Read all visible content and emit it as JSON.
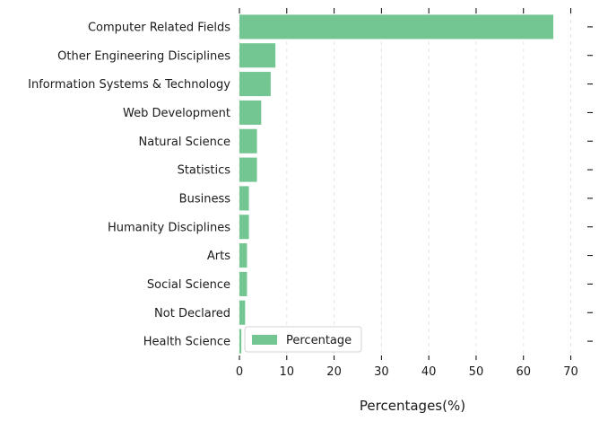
{
  "chart_data": {
    "type": "bar",
    "orientation": "horizontal",
    "categories": [
      "Computer Related Fields",
      "Other Engineering Disciplines",
      "Information Systems & Technology",
      "Web Development",
      "Natural Science",
      "Statistics",
      "Business",
      "Humanity Disciplines",
      "Arts",
      "Social Science",
      "Not Declared",
      "Health Science"
    ],
    "series": [
      {
        "name": "Percentage",
        "values": [
          66.3,
          7.6,
          6.6,
          4.6,
          3.7,
          3.7,
          2.0,
          2.0,
          1.6,
          1.6,
          1.2,
          0.4
        ]
      }
    ],
    "xlabel": "Percentages(%)",
    "ylabel": "",
    "title": "",
    "xlim": [
      0,
      73.5
    ],
    "xticks": [
      0,
      10,
      20,
      30,
      40,
      50,
      60,
      70
    ],
    "bar_color": "#73c591",
    "grid": "vertical dashed",
    "legend_position": "lower-left"
  }
}
